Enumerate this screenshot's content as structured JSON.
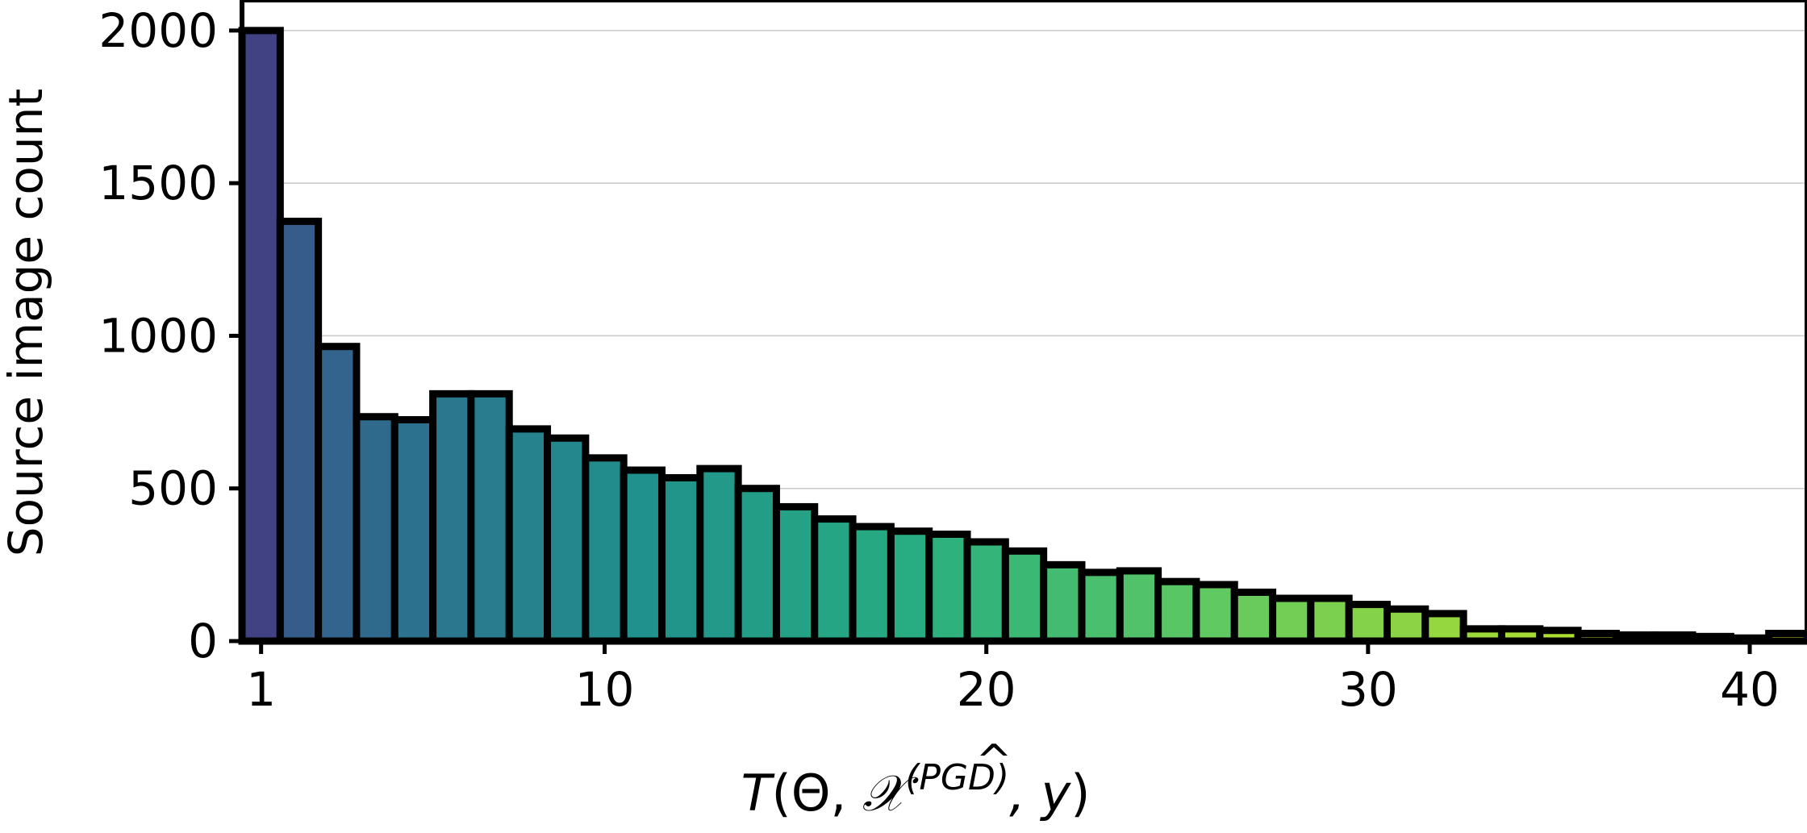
{
  "chart_data": {
    "type": "bar",
    "xlabel_parts": {
      "func": "T",
      "open": "(",
      "theta": "Θ, ",
      "symbol": "𝒳",
      "hat": "^",
      "superscript": "(PGD)",
      "y_part": ", y",
      "close": ")"
    },
    "ylabel": "Source image count",
    "x": [
      1,
      2,
      3,
      4,
      5,
      6,
      7,
      8,
      9,
      10,
      11,
      12,
      13,
      14,
      15,
      16,
      17,
      18,
      19,
      20,
      21,
      22,
      23,
      24,
      25,
      26,
      27,
      28,
      29,
      30,
      31,
      32,
      33,
      34,
      35,
      36,
      37,
      38,
      39,
      40,
      41
    ],
    "values": [
      2000,
      1375,
      965,
      735,
      725,
      810,
      810,
      695,
      665,
      600,
      560,
      535,
      565,
      500,
      440,
      400,
      375,
      360,
      350,
      325,
      295,
      250,
      225,
      230,
      195,
      185,
      160,
      140,
      140,
      120,
      105,
      90,
      40,
      40,
      35,
      25,
      20,
      20,
      15,
      10,
      25
    ],
    "xlim": [
      0.5,
      41.5
    ],
    "ylim": [
      0,
      2100
    ],
    "xticks": [
      1,
      10,
      20,
      30,
      40
    ],
    "yticks": [
      0,
      500,
      1000,
      1500,
      2000
    ],
    "grid": "horizontal",
    "colormap": "viridis",
    "edge_color": "#000000"
  }
}
